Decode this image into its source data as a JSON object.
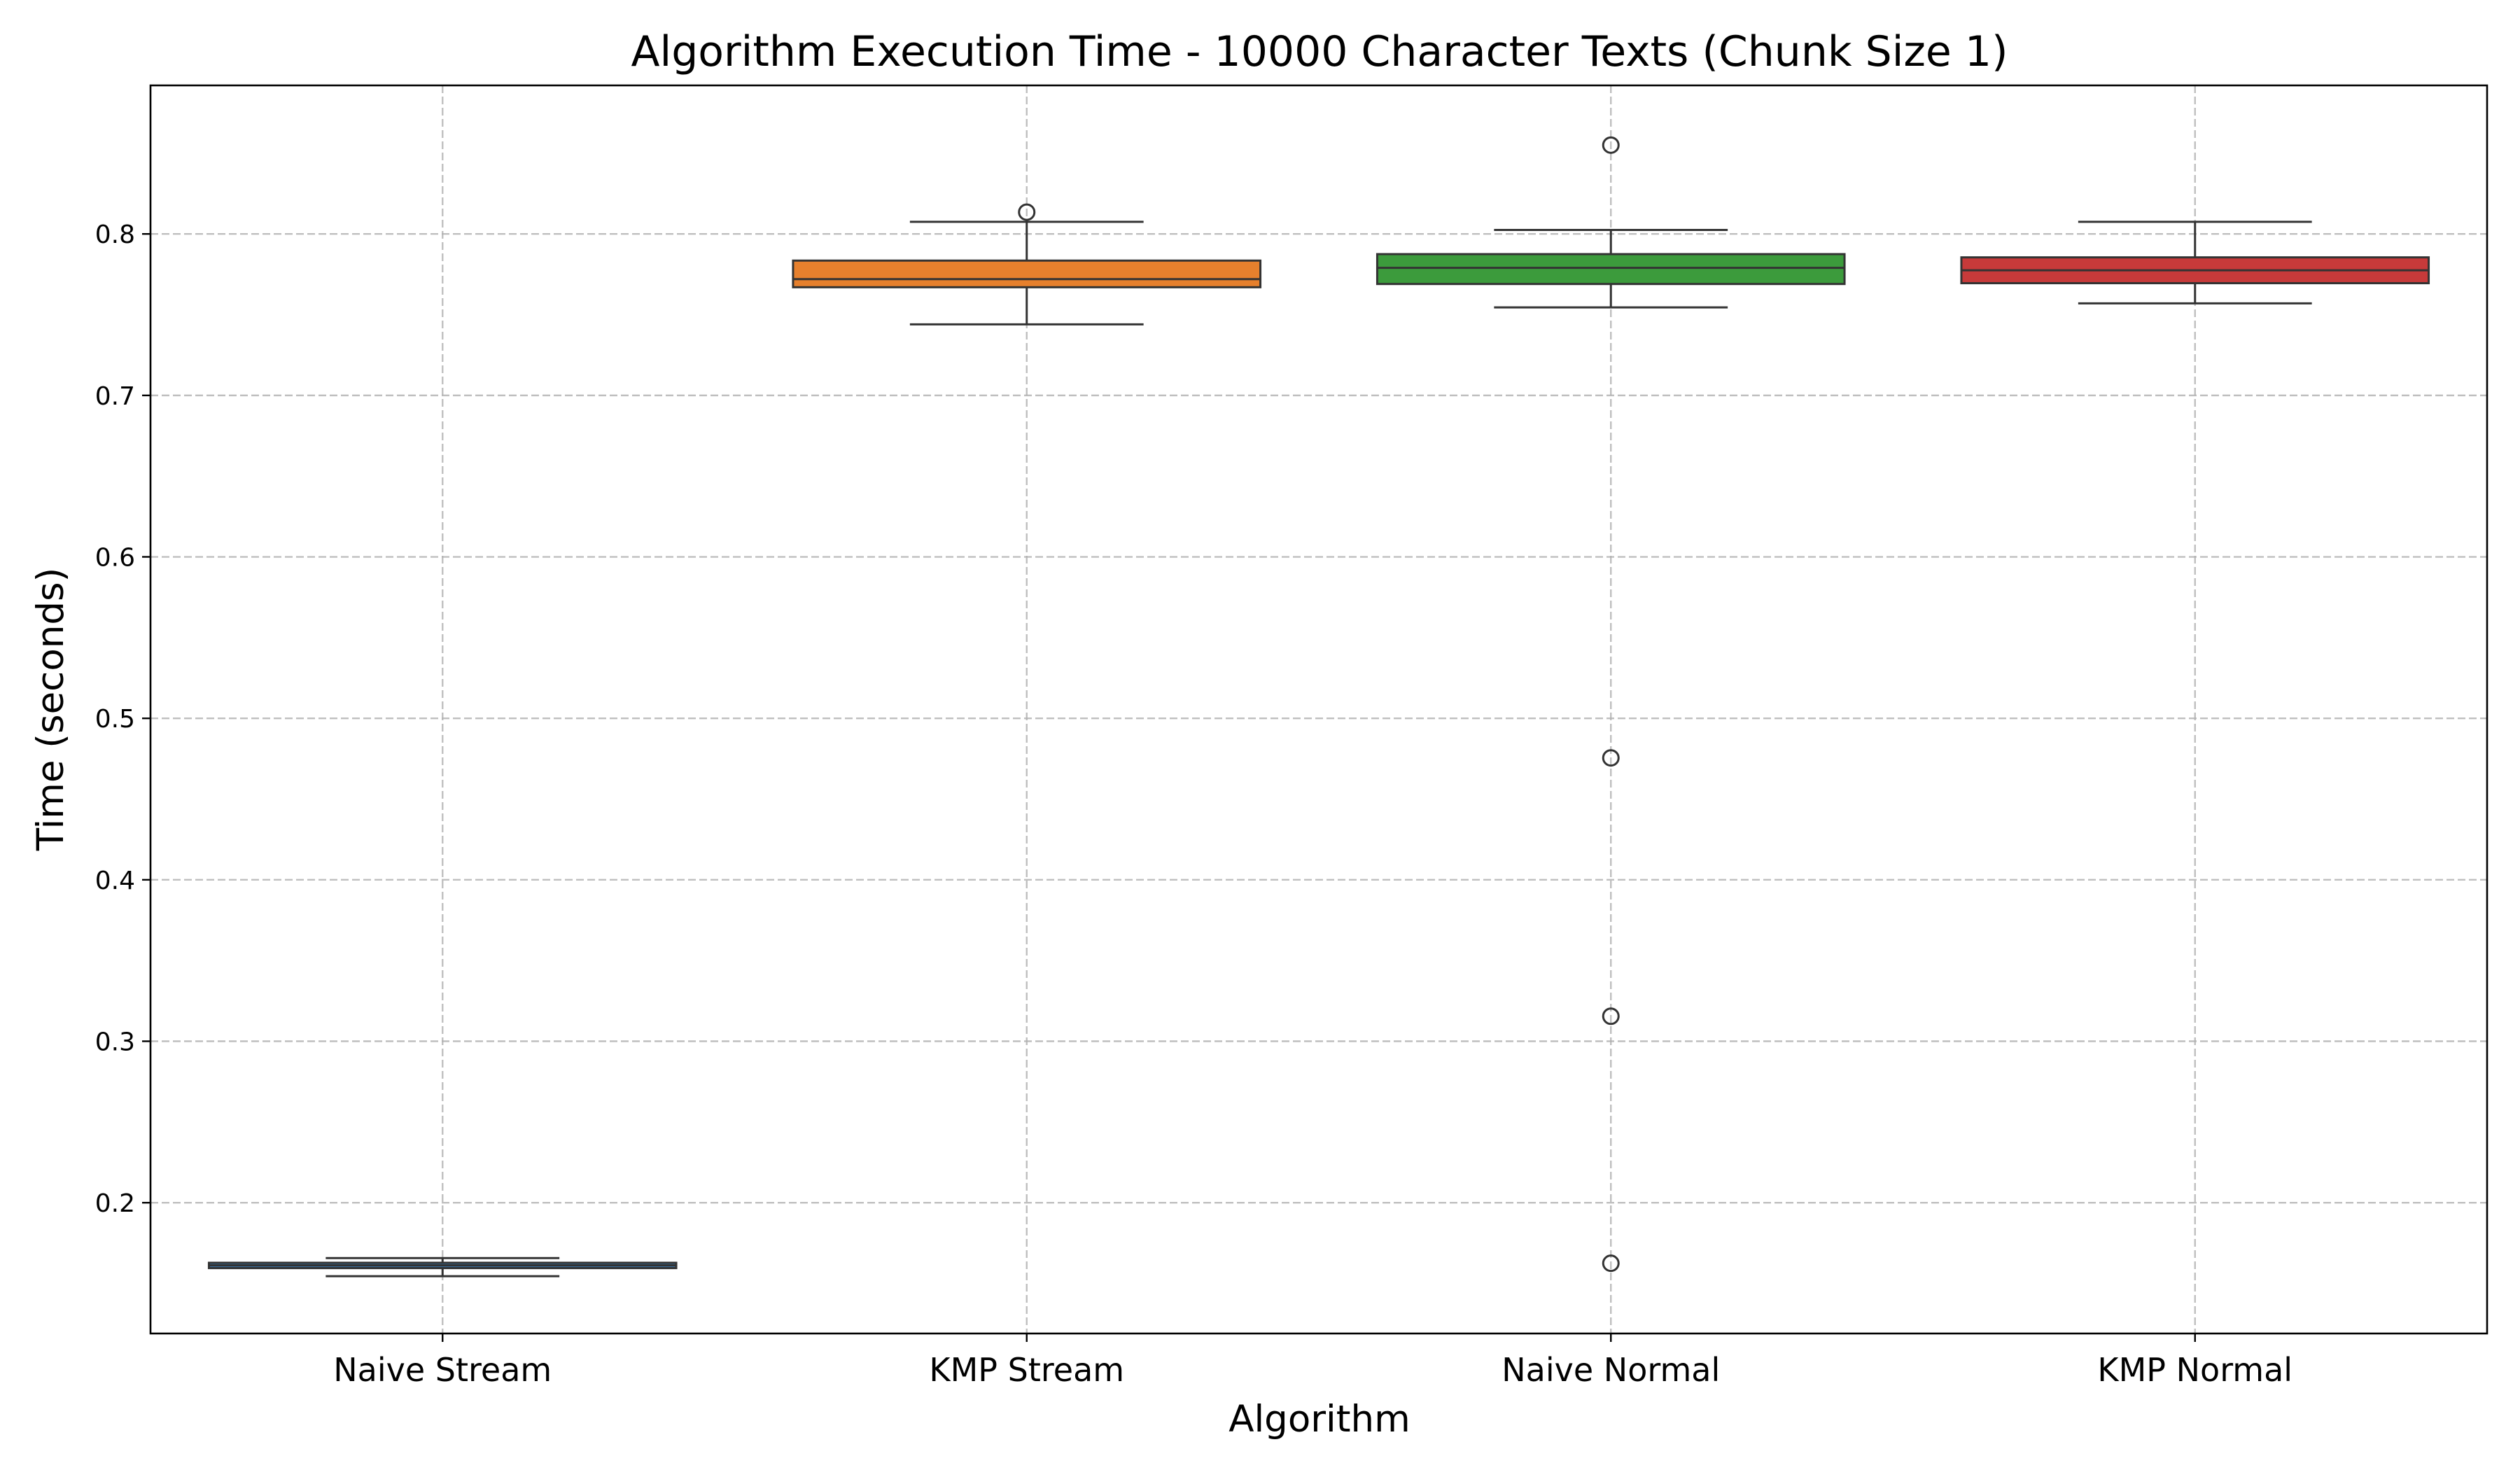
{
  "chart_data": {
    "type": "box",
    "title": "Algorithm Execution Time - 10000 Character Texts (Chunk Size 1)",
    "xlabel": "Algorithm",
    "ylabel": "Time (seconds)",
    "ylim": [
      0.119,
      0.892
    ],
    "yticks": [
      "0.2",
      "0.3",
      "0.4",
      "0.5",
      "0.6",
      "0.7",
      "0.8"
    ],
    "grid": true,
    "categories": [
      "Naive Stream",
      "KMP Stream",
      "Naive Normal",
      "KMP Normal"
    ],
    "series": [
      {
        "category": "Naive Stream",
        "whisker_low": 0.1545,
        "q1": 0.1595,
        "median": 0.1612,
        "q3": 0.1628,
        "whisker_high": 0.1657,
        "outliers": [],
        "color": "#3a78b0"
      },
      {
        "category": "KMP Stream",
        "whisker_low": 0.744,
        "q1": 0.767,
        "median": 0.772,
        "q3": 0.7835,
        "whisker_high": 0.8075,
        "outliers": [
          0.8135
        ],
        "color": "#e6802d"
      },
      {
        "category": "Naive Normal",
        "whisker_low": 0.7545,
        "q1": 0.769,
        "median": 0.779,
        "q3": 0.7875,
        "whisker_high": 0.8025,
        "outliers": [
          0.855,
          0.4755,
          0.3155,
          0.1625
        ],
        "color": "#3c9b3c"
      },
      {
        "category": "KMP Normal",
        "whisker_low": 0.757,
        "q1": 0.7695,
        "median": 0.7775,
        "q3": 0.7855,
        "whisker_high": 0.8075,
        "outliers": [],
        "color": "#c73a3a"
      }
    ]
  }
}
